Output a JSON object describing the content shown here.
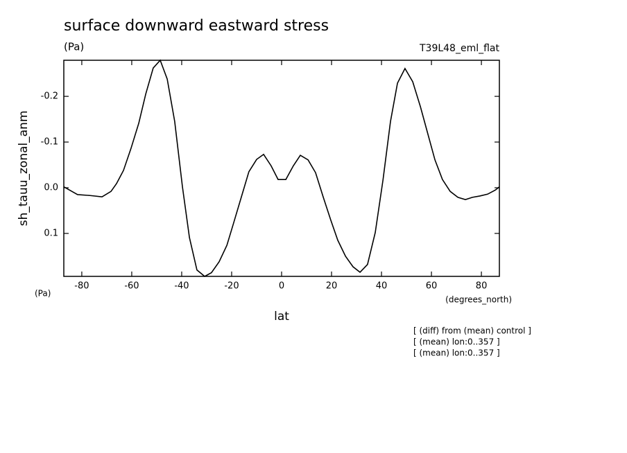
{
  "chart_data": {
    "type": "line",
    "title": "surface downward eastward stress",
    "units_label": "(Pa)",
    "run_label": "T39L48_eml_flat",
    "y_label": "sh_tauu_zonal_anm",
    "y_units": "(Pa)",
    "x_label": "lat",
    "x_units": "(degrees_north)",
    "notes": [
      "[ (diff) from (mean) control ]",
      "[ (mean) lon:0..357 ]",
      "[ (mean) lon:0..357 ]"
    ],
    "color": "#000000",
    "xlim": [
      -87.2,
      87.2
    ],
    "xticks": [
      -80,
      -60,
      -40,
      -20,
      0,
      20,
      40,
      60,
      80
    ],
    "ylim": [
      0.194,
      -0.279
    ],
    "yticks": [
      -0.2,
      -0.1,
      {
        "value": 0,
        "label": "0.0"
      },
      0.1
    ],
    "grid": false,
    "x": [
      -87.2,
      -81.7,
      -76.7,
      -71.9,
      -68.3,
      -66.1,
      -63.3,
      -60.3,
      -57.2,
      -54.4,
      -51.4,
      -48.6,
      -45.8,
      -42.8,
      -39.7,
      -36.9,
      -33.9,
      -30.8,
      -28.1,
      -25.0,
      -21.9,
      -19.2,
      -16.1,
      -13.1,
      -10.0,
      -7.2,
      -4.2,
      -1.4,
      1.7,
      4.7,
      7.5,
      10.6,
      13.6,
      16.7,
      19.7,
      22.5,
      25.6,
      28.6,
      31.4,
      34.4,
      37.5,
      40.6,
      43.6,
      46.4,
      49.4,
      52.5,
      55.6,
      58.6,
      61.4,
      64.4,
      67.5,
      70.6,
      73.6,
      76.4,
      79.4,
      82.5,
      85.6,
      87.2
    ],
    "values": [
      -0.002,
      0.015,
      0.017,
      0.02,
      0.008,
      -0.009,
      -0.038,
      -0.086,
      -0.141,
      -0.205,
      -0.262,
      -0.279,
      -0.238,
      -0.145,
      -0.002,
      0.109,
      0.18,
      0.194,
      0.186,
      0.162,
      0.126,
      0.077,
      0.02,
      -0.035,
      -0.062,
      -0.073,
      -0.048,
      -0.018,
      -0.018,
      -0.048,
      -0.071,
      -0.061,
      -0.033,
      0.021,
      0.071,
      0.115,
      0.15,
      0.173,
      0.185,
      0.168,
      0.098,
      -0.017,
      -0.145,
      -0.229,
      -0.261,
      -0.232,
      -0.177,
      -0.117,
      -0.061,
      -0.018,
      0.008,
      0.021,
      0.026,
      0.021,
      0.018,
      0.014,
      0.005,
      -0.002
    ]
  }
}
